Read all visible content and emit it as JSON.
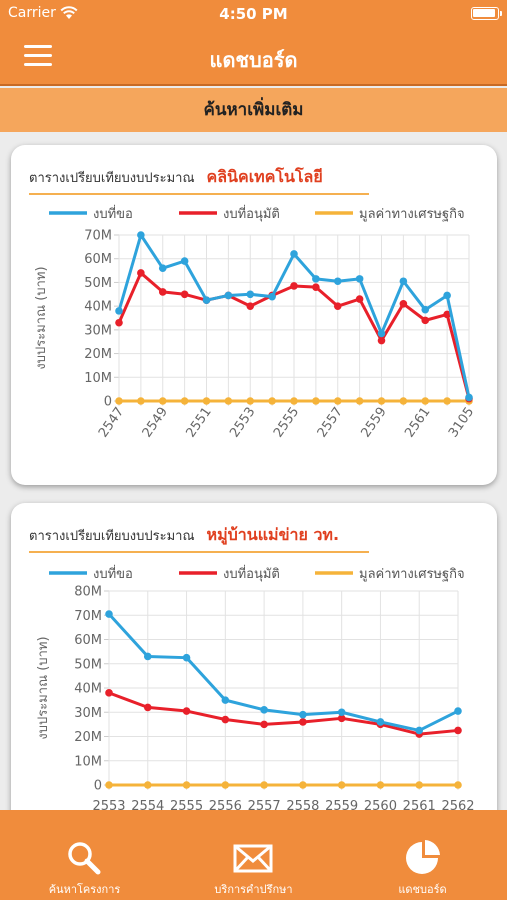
{
  "status": {
    "carrier": "Carrier",
    "time": "4:50 PM"
  },
  "header": {
    "title": "แดชบอร์ด"
  },
  "search_more": "ค้นหาเพิ่มเติม",
  "charts": [
    {
      "label": "ตารางเปรียบเทียบงบประมาณ",
      "name": "คลินิคเทคโนโลยี"
    },
    {
      "label": "ตารางเปรียบเทียบงบประมาณ",
      "name": "หมู่บ้านแม่ข่าย วท."
    }
  ],
  "colors": {
    "brand": "#f08c3c",
    "requested": "#2ea3dc",
    "approved": "#e8202a",
    "econ": "#f5b33a"
  },
  "chart_data": [
    {
      "type": "line",
      "legend_position": "top",
      "legend": [
        "งบที่ขอ",
        "งบที่อนุมัติ",
        "มูลค่าทางเศรษฐกิจ"
      ],
      "ylabel": "งบประมาณ (บาท)",
      "ylim": [
        0,
        70
      ],
      "yticks": [
        "0",
        "10M",
        "20M",
        "30M",
        "40M",
        "50M",
        "60M",
        "70M"
      ],
      "x": [
        "2547",
        "2548",
        "2549",
        "2550",
        "2551",
        "2552",
        "2553",
        "2554",
        "2555",
        "2556",
        "2557",
        "2558",
        "2559",
        "2560",
        "2561",
        "2562",
        "3105"
      ],
      "xticks": [
        "2547",
        "2549",
        "2551",
        "2553",
        "2555",
        "2557",
        "2559",
        "2561",
        "3105"
      ],
      "series": [
        {
          "name": "งบที่ขอ",
          "values": [
            38,
            70,
            56,
            59,
            42.5,
            44.5,
            45,
            44,
            62,
            51.5,
            50.5,
            51.5,
            28.5,
            50.5,
            38.5,
            44.5,
            1.5
          ]
        },
        {
          "name": "งบที่อนุมัติ",
          "values": [
            33,
            54,
            46,
            45,
            42.5,
            44.5,
            40,
            44.5,
            48.5,
            48,
            40,
            43,
            25.5,
            41,
            34,
            36.5,
            1
          ]
        },
        {
          "name": "มูลค่าทางเศรษฐกิจ",
          "values": [
            0,
            0,
            0,
            0,
            0,
            0,
            0,
            0,
            0,
            0,
            0,
            0,
            0,
            0,
            0,
            0,
            0
          ]
        }
      ]
    },
    {
      "type": "line",
      "legend_position": "top",
      "legend": [
        "งบที่ขอ",
        "งบที่อนุมัติ",
        "มูลค่าทางเศรษฐกิจ"
      ],
      "ylabel": "งบประมาณ (บาท)",
      "ylim": [
        0,
        80
      ],
      "yticks": [
        "0",
        "10M",
        "20M",
        "30M",
        "40M",
        "50M",
        "60M",
        "70M",
        "80M"
      ],
      "x": [
        "2553",
        "2554",
        "2555",
        "2556",
        "2557",
        "2558",
        "2559",
        "2560",
        "2561",
        "2562"
      ],
      "xticks": [
        "2553",
        "2554",
        "2555",
        "2556",
        "2557",
        "2558",
        "2559",
        "2560",
        "2561",
        "2562"
      ],
      "series": [
        {
          "name": "งบที่ขอ",
          "values": [
            70.5,
            53,
            52.5,
            35,
            31,
            29,
            30,
            26,
            22.5,
            30.5
          ]
        },
        {
          "name": "งบที่อนุมัติ",
          "values": [
            38,
            32,
            30.5,
            27,
            25,
            26,
            27.5,
            25,
            21,
            22.5
          ]
        },
        {
          "name": "มูลค่าทางเศรษฐกิจ",
          "values": [
            0,
            0,
            0,
            0,
            0,
            0,
            0,
            0,
            0,
            0
          ]
        }
      ]
    }
  ],
  "tabs": [
    {
      "label": "ค้นหาโครงการ",
      "icon": "search-icon"
    },
    {
      "label": "บริการคำปรึกษา",
      "icon": "mail-icon"
    },
    {
      "label": "แดชบอร์ด",
      "icon": "dashboard-icon"
    }
  ]
}
